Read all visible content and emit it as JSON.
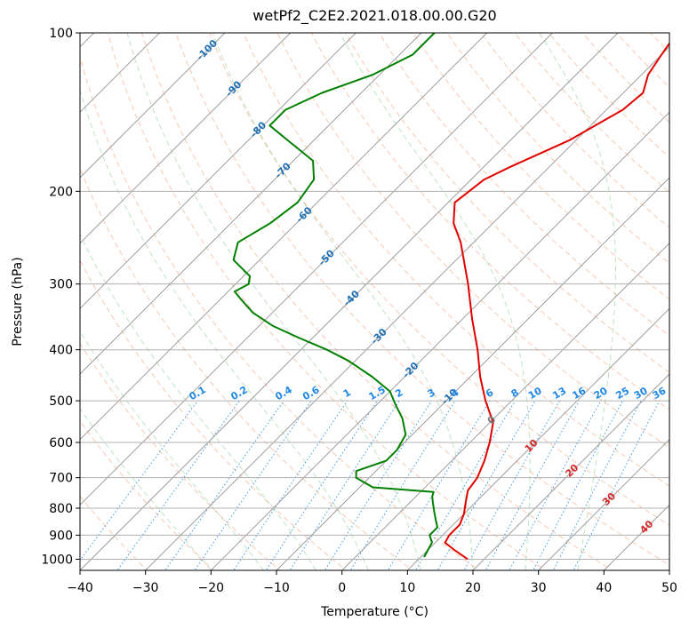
{
  "chart_data": {
    "type": "line",
    "title": "wetPf2_C2E2.2021.018.00.00.G20",
    "xlabel": "Temperature (°C)",
    "ylabel": "Pressure (hPa)",
    "xlim": [
      -40,
      50
    ],
    "ylim": [
      1050,
      100
    ],
    "y_scale": "log",
    "grid": true,
    "x_ticks": [
      -40,
      -30,
      -20,
      -10,
      0,
      10,
      20,
      30,
      40,
      50
    ],
    "x_tick_labels": [
      "−40",
      "−30",
      "−20",
      "−10",
      "0",
      "10",
      "20",
      "30",
      "40",
      "50"
    ],
    "y_ticks": [
      100,
      200,
      300,
      400,
      500,
      600,
      700,
      800,
      900,
      1000
    ],
    "y_tick_labels": [
      "100",
      "200",
      "300",
      "400",
      "500",
      "600",
      "700",
      "800",
      "900",
      "1000"
    ],
    "skew_isotherm_labels": [
      "-100",
      "-90",
      "-80",
      "-70",
      "-60",
      "-50",
      "-40",
      "-30",
      "-20",
      "-10",
      "0",
      "10",
      "20",
      "30",
      "40"
    ],
    "mixing_ratio_labels": [
      "0.1",
      "0.2",
      "0.4",
      "0.6",
      "1",
      "1.5",
      "2",
      "3",
      "4",
      "6",
      "8",
      "10",
      "13",
      "16",
      "20",
      "25",
      "30",
      "36"
    ],
    "series": [
      {
        "color": "#e00000",
        "points": [
          [
            1000,
            17.5
          ],
          [
            960,
            14
          ],
          [
            930,
            11.5
          ],
          [
            900,
            11
          ],
          [
            860,
            11
          ],
          [
            820,
            10
          ],
          [
            780,
            8.5
          ],
          [
            740,
            7
          ],
          [
            700,
            6.5
          ],
          [
            650,
            5
          ],
          [
            600,
            3
          ],
          [
            550,
            0.5
          ],
          [
            500,
            -4
          ],
          [
            450,
            -8.5
          ],
          [
            400,
            -13
          ],
          [
            350,
            -18.5
          ],
          [
            300,
            -24.5
          ],
          [
            250,
            -32
          ],
          [
            230,
            -36
          ],
          [
            210,
            -39
          ],
          [
            190,
            -38
          ],
          [
            180,
            -36
          ],
          [
            160,
            -31
          ],
          [
            140,
            -27.5
          ],
          [
            130,
            -27
          ],
          [
            120,
            -29
          ],
          [
            110,
            -30
          ],
          [
            100,
            -31
          ]
        ]
      },
      {
        "color": "#008000",
        "points": [
          [
            990,
            10.5
          ],
          [
            960,
            10
          ],
          [
            930,
            9.5
          ],
          [
            900,
            8
          ],
          [
            870,
            8
          ],
          [
            840,
            6.5
          ],
          [
            810,
            5
          ],
          [
            780,
            3.5
          ],
          [
            760,
            2.5
          ],
          [
            745,
            2
          ],
          [
            730,
            -8
          ],
          [
            700,
            -12
          ],
          [
            680,
            -13
          ],
          [
            650,
            -10
          ],
          [
            620,
            -10
          ],
          [
            580,
            -11
          ],
          [
            540,
            -14
          ],
          [
            510,
            -17
          ],
          [
            480,
            -20
          ],
          [
            450,
            -25
          ],
          [
            420,
            -31
          ],
          [
            400,
            -36
          ],
          [
            380,
            -42
          ],
          [
            360,
            -48
          ],
          [
            340,
            -53
          ],
          [
            320,
            -57
          ],
          [
            310,
            -59
          ],
          [
            300,
            -58
          ],
          [
            290,
            -59
          ],
          [
            270,
            -64
          ],
          [
            250,
            -66
          ],
          [
            230,
            -64
          ],
          [
            210,
            -63
          ],
          [
            190,
            -64
          ],
          [
            175,
            -67
          ],
          [
            160,
            -74
          ],
          [
            150,
            -79
          ],
          [
            140,
            -79
          ],
          [
            130,
            -76
          ],
          [
            120,
            -71
          ],
          [
            110,
            -68
          ],
          [
            100,
            -68
          ]
        ]
      }
    ]
  }
}
